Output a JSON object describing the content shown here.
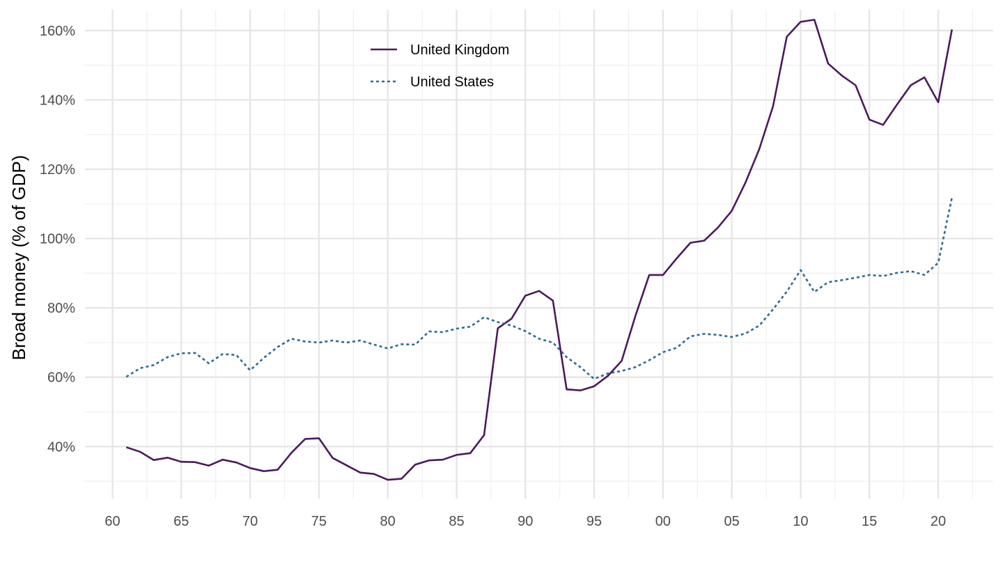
{
  "chart_data": {
    "type": "line",
    "title": "",
    "xlabel": "",
    "ylabel": "Broad money (% of GDP)",
    "xlim": [
      1958,
      2024
    ],
    "ylim": [
      25,
      166
    ],
    "x_ticks": [
      1960,
      1965,
      1970,
      1975,
      1980,
      1985,
      1990,
      1995,
      2000,
      2005,
      2010,
      2015,
      2020
    ],
    "x_tick_labels": [
      "60",
      "65",
      "70",
      "75",
      "80",
      "85",
      "90",
      "95",
      "00",
      "05",
      "10",
      "15",
      "20"
    ],
    "y_ticks": [
      40,
      60,
      80,
      100,
      120,
      140,
      160
    ],
    "y_tick_labels": [
      "40%",
      "60%",
      "80%",
      "100%",
      "120%",
      "140%",
      "160%"
    ],
    "grid": true,
    "legend_position": "top-center",
    "x": [
      1961,
      1962,
      1963,
      1964,
      1965,
      1966,
      1967,
      1968,
      1969,
      1970,
      1971,
      1972,
      1973,
      1974,
      1975,
      1976,
      1977,
      1978,
      1979,
      1980,
      1981,
      1982,
      1983,
      1984,
      1985,
      1986,
      1987,
      1988,
      1989,
      1990,
      1991,
      1992,
      1993,
      1994,
      1995,
      1996,
      1997,
      1998,
      1999,
      2000,
      2001,
      2002,
      2003,
      2004,
      2005,
      2006,
      2007,
      2008,
      2009,
      2010,
      2011,
      2012,
      2013,
      2014,
      2015,
      2016,
      2017,
      2018,
      2019,
      2020,
      2021
    ],
    "series": [
      {
        "name": "United Kingdom",
        "color": "#4b1a5c",
        "dash": "solid",
        "values": [
          39.8,
          38.5,
          36.1,
          36.8,
          35.6,
          35.5,
          34.5,
          36.2,
          35.4,
          33.8,
          32.9,
          33.3,
          38.2,
          42.2,
          42.4,
          36.7,
          34.6,
          32.5,
          32.1,
          30.4,
          30.7,
          34.8,
          36.0,
          36.2,
          37.6,
          38.1,
          43.3,
          74.1,
          76.9,
          83.5,
          84.9,
          82.1,
          56.5,
          56.2,
          57.4,
          60.4,
          64.7,
          77.7,
          89.5,
          89.5,
          94.3,
          98.8,
          99.4,
          103.2,
          108.0,
          116.2,
          125.8,
          138.2,
          158.2,
          162.5,
          163.1,
          150.5,
          147.0,
          144.2,
          134.3,
          132.8,
          138.6,
          144.2,
          146.5,
          139.3,
          160.3
        ]
      },
      {
        "name": "United States",
        "color": "#2e6a8e",
        "dash": "dotted",
        "values": [
          60.1,
          62.6,
          63.5,
          65.8,
          66.9,
          67.0,
          64.0,
          66.7,
          66.4,
          62.0,
          65.6,
          68.7,
          71.1,
          70.3,
          70.0,
          70.6,
          70.0,
          70.6,
          69.4,
          68.3,
          69.5,
          69.4,
          73.2,
          73.0,
          74.0,
          74.6,
          77.3,
          75.9,
          74.9,
          73.3,
          71.1,
          70.0,
          65.8,
          62.9,
          59.5,
          61.1,
          61.8,
          62.9,
          64.9,
          67.2,
          68.5,
          71.8,
          72.5,
          72.2,
          71.6,
          72.6,
          74.9,
          79.6,
          84.7,
          90.9,
          84.6,
          87.4,
          88.0,
          88.7,
          89.5,
          89.2,
          90.1,
          90.6,
          89.5,
          93.0,
          111.8
        ]
      }
    ]
  }
}
